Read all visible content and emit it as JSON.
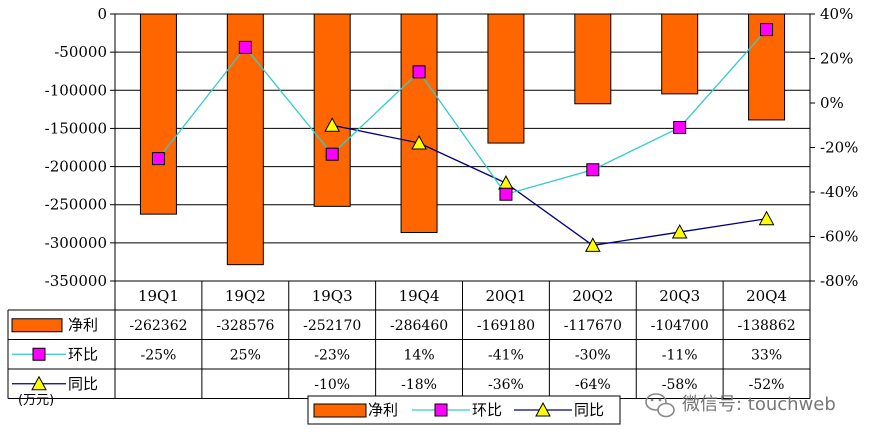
{
  "chart_data": {
    "type": "bar",
    "categories": [
      "19Q1",
      "19Q2",
      "19Q3",
      "19Q4",
      "20Q1",
      "20Q2",
      "20Q3",
      "20Q4"
    ],
    "series": [
      {
        "name": "净利",
        "type": "bar",
        "axis": "left",
        "color": "#ff6600",
        "values": [
          -262362,
          -328576,
          -252170,
          -286460,
          -169180,
          -117670,
          -104700,
          -138862
        ],
        "labels": [
          "-262362",
          "-328576",
          "-252170",
          "-286460",
          "-169180",
          "-117670",
          "-104700",
          "-138862"
        ]
      },
      {
        "name": "环比",
        "type": "line",
        "axis": "right",
        "color": "#33cccc",
        "marker": "square",
        "marker_color": "#ff00ff",
        "values": [
          -25,
          25,
          -23,
          14,
          -41,
          -30,
          -11,
          33
        ],
        "labels": [
          "-25%",
          "25%",
          "-23%",
          "14%",
          "-41%",
          "-30%",
          "-11%",
          "33%"
        ]
      },
      {
        "name": "同比",
        "type": "line",
        "axis": "right",
        "color": "#000080",
        "marker": "triangle",
        "marker_color": "#ffff00",
        "values": [
          null,
          null,
          -10,
          -18,
          -36,
          -64,
          -58,
          -52
        ],
        "labels": [
          "",
          "",
          "-10%",
          "-18%",
          "-36%",
          "-64%",
          "-58%",
          "-52%"
        ]
      }
    ],
    "ylim_left": [
      -350000,
      0
    ],
    "yticks_left": [
      "0",
      "-50000",
      "-100000",
      "-150000",
      "-200000",
      "-250000",
      "-300000",
      "-350000"
    ],
    "ylim_right": [
      -80,
      40
    ],
    "yticks_right": [
      "40%",
      "20%",
      "0%",
      "-20%",
      "-40%",
      "-60%",
      "-80%"
    ],
    "grid": true,
    "legend": {
      "position": "bottom",
      "items": [
        "净利",
        "环比",
        "同比"
      ]
    },
    "unit": "(万元)"
  },
  "watermark": {
    "text": "微信号: touchweb"
  }
}
